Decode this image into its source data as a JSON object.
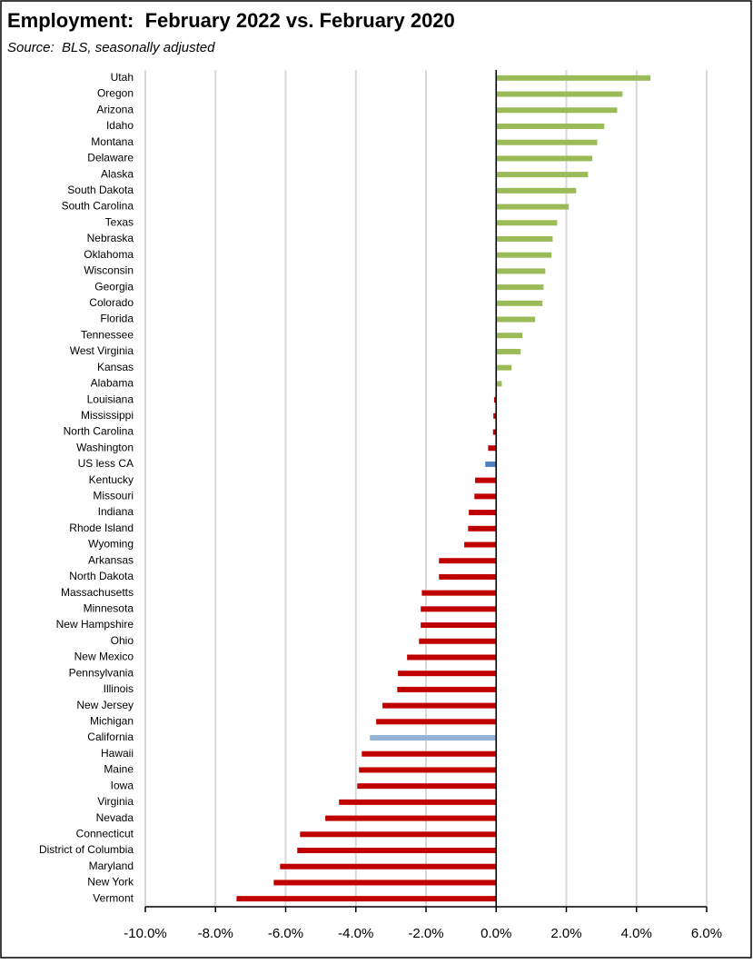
{
  "chart_data": {
    "type": "barh",
    "title": "Employment:  February 2022 vs. February 2020",
    "subtitle": "Source:  BLS, seasonally adjusted",
    "categories": [
      "Utah",
      "Oregon",
      "Arizona",
      "Idaho",
      "Montana",
      "Delaware",
      "Alaska",
      "South Dakota",
      "South Carolina",
      "Texas",
      "Nebraska",
      "Oklahoma",
      "Wisconsin",
      "Georgia",
      "Colorado",
      "Florida",
      "Tennessee",
      "West Virginia",
      "Kansas",
      "Alabama",
      "Louisiana",
      "Mississippi",
      "North Carolina",
      "Washington",
      "US less CA",
      "Kentucky",
      "Missouri",
      "Indiana",
      "Rhode Island",
      "Wyoming",
      "Arkansas",
      "North Dakota",
      "Massachusetts",
      "Minnesota",
      "New Hampshire",
      "Ohio",
      "New Mexico",
      "Pennsylvania",
      "Illinois",
      "New Jersey",
      "Michigan",
      "California",
      "Hawaii",
      "Maine",
      "Iowa",
      "Virginia",
      "Nevada",
      "Connecticut",
      "District of Columbia",
      "Maryland",
      "New York",
      "Vermont"
    ],
    "values": [
      4.4,
      3.6,
      3.45,
      3.08,
      2.88,
      2.74,
      2.62,
      2.28,
      2.07,
      1.74,
      1.61,
      1.58,
      1.4,
      1.35,
      1.32,
      1.11,
      0.75,
      0.7,
      0.44,
      0.16,
      -0.06,
      -0.08,
      -0.09,
      -0.23,
      -0.31,
      -0.6,
      -0.62,
      -0.78,
      -0.8,
      -0.91,
      -1.63,
      -1.63,
      -2.12,
      -2.15,
      -2.15,
      -2.2,
      -2.54,
      -2.8,
      -2.82,
      -3.24,
      -3.42,
      -3.6,
      -3.83,
      -3.91,
      -3.96,
      -4.48,
      -4.87,
      -5.59,
      -5.67,
      -6.16,
      -6.34,
      -7.4
    ],
    "colors": [
      "#9bbb59",
      "#9bbb59",
      "#9bbb59",
      "#9bbb59",
      "#9bbb59",
      "#9bbb59",
      "#9bbb59",
      "#9bbb59",
      "#9bbb59",
      "#9bbb59",
      "#9bbb59",
      "#9bbb59",
      "#9bbb59",
      "#9bbb59",
      "#9bbb59",
      "#9bbb59",
      "#9bbb59",
      "#9bbb59",
      "#9bbb59",
      "#9bbb59",
      "#c00000",
      "#c00000",
      "#c00000",
      "#c00000",
      "#4f81bd",
      "#c00000",
      "#c00000",
      "#c00000",
      "#c00000",
      "#c00000",
      "#c00000",
      "#c00000",
      "#c00000",
      "#c00000",
      "#c00000",
      "#c00000",
      "#c00000",
      "#c00000",
      "#c00000",
      "#c00000",
      "#c00000",
      "#95b3d7",
      "#c00000",
      "#c00000",
      "#c00000",
      "#c00000",
      "#c00000",
      "#c00000",
      "#c00000",
      "#c00000",
      "#c00000",
      "#c00000"
    ],
    "xlim": [
      -10,
      6
    ],
    "xticks": [
      {
        "value": -10,
        "label": "-10.0%"
      },
      {
        "value": -8,
        "label": "-8.0%"
      },
      {
        "value": -6,
        "label": "-6.0%"
      },
      {
        "value": -4,
        "label": "-4.0%"
      },
      {
        "value": -2,
        "label": "-2.0%"
      },
      {
        "value": 0,
        "label": "0.0%"
      },
      {
        "value": 2,
        "label": "2.0%"
      },
      {
        "value": 4,
        "label": "4.0%"
      },
      {
        "value": 6,
        "label": "6.0%"
      }
    ],
    "grid": true
  }
}
